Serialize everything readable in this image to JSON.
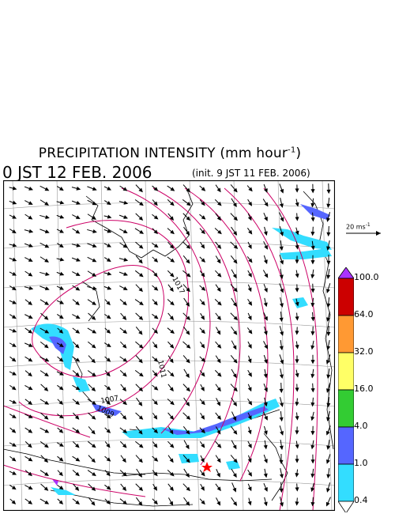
{
  "header": {
    "title": "PRECIPITATION INTENSITY (mm hour",
    "title_exp": "-1",
    "title_close": ")",
    "valid_time": "0 JST 12 FEB. 2006",
    "init_time": "(init. 9 JST 11 FEB. 2006)"
  },
  "reference_vector": {
    "label": "20 ms",
    "label_exp": "-1"
  },
  "color_scale": {
    "labels": [
      "100.0",
      "64.0",
      "32.0",
      "16.0",
      "4.0",
      "1.0",
      "0.4"
    ],
    "colors": [
      "#cc0000",
      "#ff9933",
      "#ffff66",
      "#33cc33",
      "#5566ff",
      "#33ddff"
    ],
    "over_color": "#aa33ff"
  },
  "isobar_labels": [
    "1017",
    "1011",
    "1009",
    "1007"
  ],
  "marker_color": "#ff0000"
}
